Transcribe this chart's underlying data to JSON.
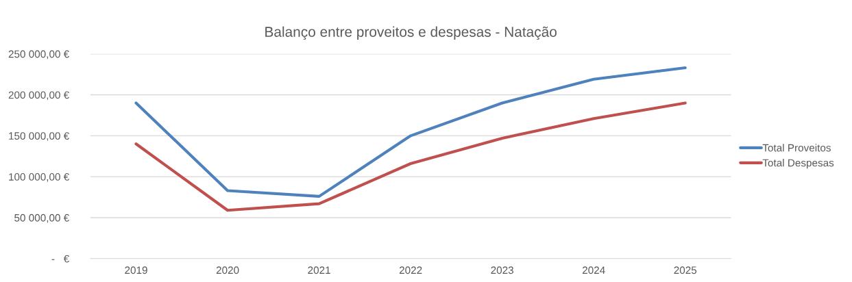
{
  "chart_data": {
    "type": "line",
    "title": "Balanço entre proveitos e despesas - Natação",
    "categories": [
      "2019",
      "2020",
      "2021",
      "2022",
      "2023",
      "2024",
      "2025"
    ],
    "series": [
      {
        "name": "Total Proveitos",
        "color": "#4f81bd",
        "values": [
          190000,
          83000,
          76000,
          150000,
          190000,
          219000,
          233000
        ]
      },
      {
        "name": "Total Despesas",
        "color": "#c0504d",
        "values": [
          140000,
          59000,
          67000,
          116000,
          147000,
          171000,
          190000
        ]
      }
    ],
    "ylim": [
      0,
      250000
    ],
    "yticks": [
      {
        "value": 0,
        "label": "-   €"
      },
      {
        "value": 50000,
        "label": "50 000,00 €"
      },
      {
        "value": 100000,
        "label": "100 000,00 €"
      },
      {
        "value": 150000,
        "label": "150 000,00 €"
      },
      {
        "value": 200000,
        "label": "200 000,00 €"
      },
      {
        "value": 250000,
        "label": "250 000,00 €"
      }
    ],
    "grid": "y",
    "legend": "right",
    "marker": "none",
    "line_style": "solid"
  }
}
